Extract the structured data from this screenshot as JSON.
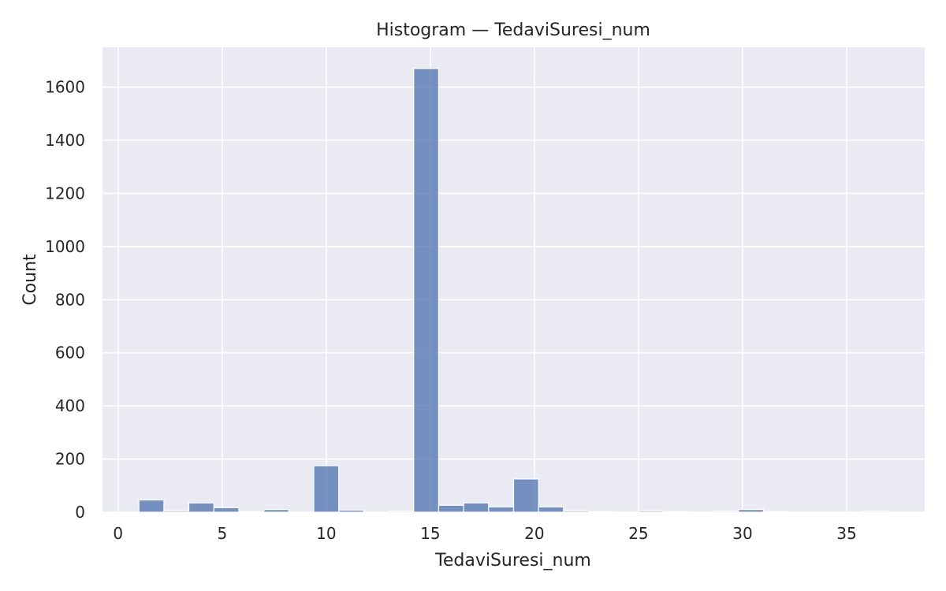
{
  "chart_data": {
    "type": "bar",
    "title": "Histogram — TedaviSuresi_num",
    "xlabel": "TedaviSuresi_num",
    "ylabel": "Count",
    "xlim": [
      -0.75,
      38.75
    ],
    "ylim": [
      0,
      1750
    ],
    "x_ticks": [
      0,
      5,
      10,
      15,
      20,
      25,
      30,
      35
    ],
    "y_ticks": [
      0,
      200,
      400,
      600,
      800,
      1000,
      1200,
      1400,
      1600
    ],
    "grid": true,
    "background": "#eaeaf2",
    "bar_color": "#4c72b0",
    "bin_edges": [
      1.0,
      2.2,
      3.4,
      4.6,
      5.8,
      7.0,
      8.2,
      9.4,
      10.6,
      11.8,
      13.0,
      14.2,
      15.4,
      16.6,
      17.8,
      19.0,
      20.2,
      21.4,
      22.6,
      23.8,
      25.0,
      26.2,
      27.4,
      28.6,
      29.8,
      31.0,
      32.2,
      33.4,
      34.6,
      35.8,
      37.0
    ],
    "counts": [
      46,
      5,
      35,
      17,
      2,
      10,
      0,
      175,
      8,
      0,
      4,
      1670,
      26,
      35,
      20,
      125,
      20,
      5,
      2,
      0,
      5,
      2,
      0,
      4,
      10,
      2,
      0,
      0,
      0,
      4
    ]
  }
}
